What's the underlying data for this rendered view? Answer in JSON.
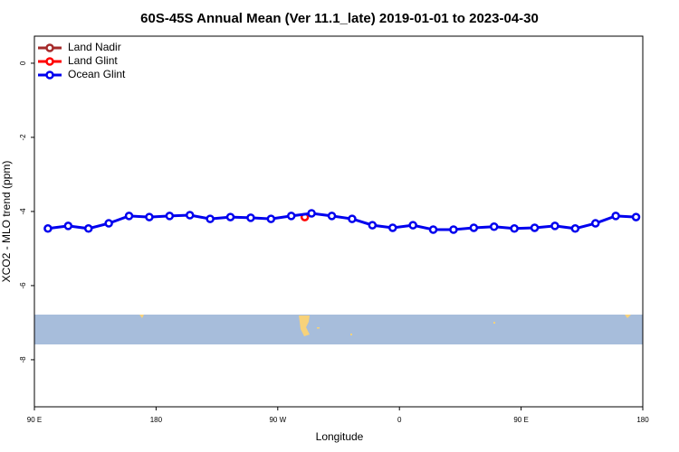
{
  "chart_data": {
    "type": "line",
    "title": "60S-45S Annual Mean (Ver 11.1_late)   2019-01-01 to 2023-04-30",
    "xlabel": "Longitude",
    "ylabel": "XCO2 - MLO trend (ppm)",
    "xlim": [
      90,
      540
    ],
    "ylim": [
      -9.27,
      0.73
    ],
    "xticks": [
      {
        "value": 90,
        "label": "90 E"
      },
      180,
      {
        "value": 270,
        "label": "90 W"
      },
      {
        "value": 360,
        "label": "0"
      },
      {
        "value": 450,
        "label": "90 E"
      },
      {
        "value": 540,
        "label": "180"
      }
    ],
    "yticks": [
      0,
      -2,
      -4,
      -6,
      -8
    ],
    "legend": "top-left",
    "series": [
      {
        "name": "Land Nadir",
        "color": "#a52a2a",
        "x": [],
        "values": []
      },
      {
        "name": "Land Glint",
        "color": "#ff0000",
        "x": [
          290
        ],
        "values": [
          -4.15
        ]
      },
      {
        "name": "Ocean Glint",
        "color": "#0000ee",
        "x": [
          100,
          115,
          130,
          145,
          160,
          175,
          190,
          205,
          220,
          235,
          250,
          265,
          280,
          295,
          310,
          325,
          340,
          355,
          370,
          385,
          400,
          415,
          430,
          445,
          460,
          475,
          490,
          505,
          520,
          535
        ],
        "values": [
          -4.46,
          -4.39,
          -4.46,
          -4.32,
          -4.12,
          -4.15,
          -4.12,
          -4.1,
          -4.2,
          -4.15,
          -4.17,
          -4.2,
          -4.12,
          -4.05,
          -4.12,
          -4.2,
          -4.37,
          -4.44,
          -4.37,
          -4.49,
          -4.49,
          -4.44,
          -4.41,
          -4.46,
          -4.44,
          -4.39,
          -4.46,
          -4.32,
          -4.12,
          -4.15
        ]
      }
    ]
  }
}
